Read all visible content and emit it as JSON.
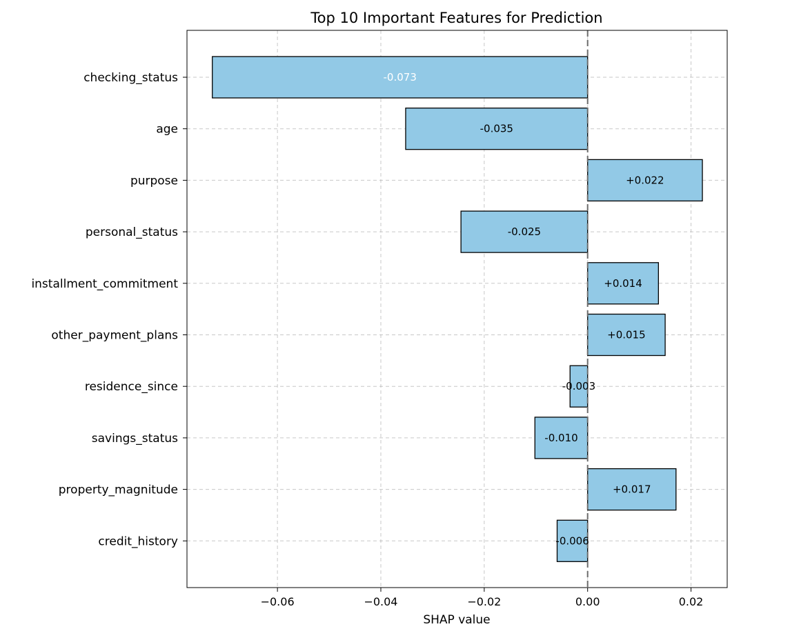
{
  "chart_data": {
    "type": "bar",
    "orientation": "horizontal",
    "title": "Top 10 Important Features for Prediction",
    "xlabel": "SHAP value",
    "ylabel": "",
    "xlim": [
      -0.0775,
      0.027
    ],
    "xticks": [
      -0.06,
      -0.04,
      -0.02,
      0.0,
      0.02
    ],
    "xtick_labels": [
      "−0.06",
      "−0.04",
      "−0.02",
      "0.00",
      "0.02"
    ],
    "grid": true,
    "zero_line": true,
    "bar_color": "#92c9e6",
    "bar_edge_color": "#000000",
    "categories": [
      "checking_status",
      "age",
      "purpose",
      "personal_status",
      "installment_commitment",
      "other_payment_plans",
      "residence_since",
      "savings_status",
      "property_magnitude",
      "credit_history"
    ],
    "values": [
      -0.0726,
      -0.0352,
      0.0222,
      -0.0245,
      0.0137,
      0.015,
      -0.0034,
      -0.0102,
      0.0171,
      -0.0059
    ],
    "data_labels": [
      "-0.073",
      "-0.035",
      "+0.022",
      "-0.025",
      "+0.014",
      "+0.015",
      "-0.003",
      "-0.010",
      "+0.017",
      "-0.006"
    ],
    "label_colors": [
      "#ffffff",
      "#000000",
      "#000000",
      "#000000",
      "#000000",
      "#000000",
      "#000000",
      "#000000",
      "#000000",
      "#000000"
    ]
  }
}
